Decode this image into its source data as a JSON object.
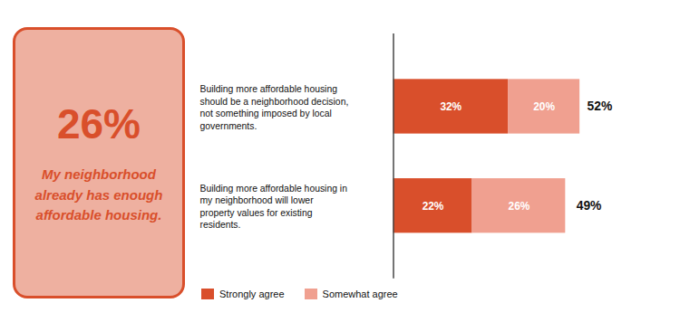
{
  "chart_data": {
    "type": "bar",
    "orientation": "horizontal",
    "stacked": true,
    "categories": [
      "Building more affordable housing\nshould be a neighborhood decision,\nnot something imposed by local\ngovernments.",
      "Building more affordable housing in\nmy neighborhood will lower\nproperty values for existing\nresidents."
    ],
    "series": [
      {
        "name": "Strongly agree",
        "color": "#d94f2b",
        "values": [
          32,
          22
        ],
        "value_labels": [
          "32%",
          "22%"
        ]
      },
      {
        "name": "Somewhat agree",
        "color": "#f0a090",
        "values": [
          20,
          26
        ],
        "value_labels": [
          "20%",
          "26%"
        ]
      }
    ],
    "totals": [
      52,
      49
    ],
    "total_labels": [
      "52%",
      "49%"
    ],
    "data_labels": true,
    "xlim": [
      -55,
      75
    ],
    "tick_labels": "y",
    "grid": false,
    "legend": "bottom",
    "annotations": [
      {
        "text": "26%",
        "color": "#d94f2b"
      },
      {
        "text": "My neighborhood\nalready has enough\naffordable housing.",
        "color": "#d94f2b"
      }
    ]
  }
}
